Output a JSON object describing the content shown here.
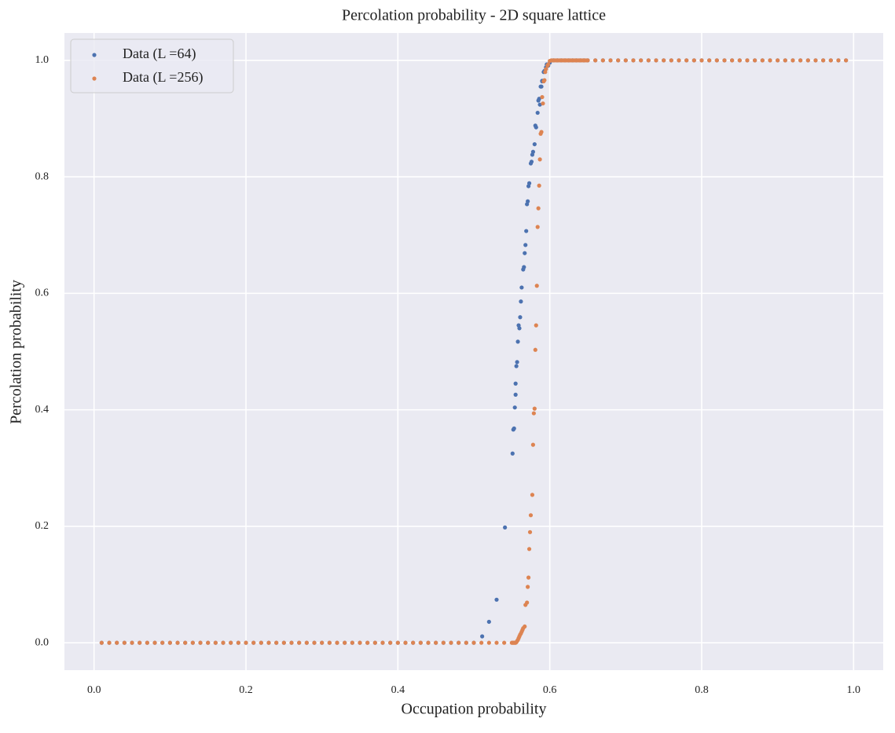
{
  "chart_data": {
    "type": "scatter",
    "title": "Percolation probability - 2D square lattice",
    "x_label": "Occupation probability",
    "y_label": "Percolation probability",
    "xlim": [
      -0.039,
      1.039
    ],
    "ylim": [
      -0.047,
      1.047
    ],
    "xticks": [
      {
        "value": 0,
        "label": "0.0"
      },
      0.2,
      0.4,
      0.6,
      0.8,
      {
        "value": 1,
        "label": "1.0"
      }
    ],
    "yticks": [
      {
        "value": 0,
        "label": "0.0"
      },
      0.2,
      0.4,
      0.6,
      0.8,
      {
        "value": 1,
        "label": "1.0"
      }
    ],
    "grid": true,
    "legend": "upper left",
    "series": [
      {
        "name": "Data (L =64)",
        "color": "#4c72b0",
        "x": [
          0.01,
          0.02,
          0.03,
          0.04,
          0.05,
          0.06,
          0.07,
          0.08,
          0.09,
          0.1,
          0.11,
          0.12,
          0.13,
          0.14,
          0.15,
          0.16,
          0.17,
          0.18,
          0.19,
          0.2,
          0.21,
          0.22,
          0.23,
          0.24,
          0.25,
          0.26,
          0.27,
          0.28,
          0.29,
          0.3,
          0.31,
          0.32,
          0.33,
          0.34,
          0.35,
          0.36,
          0.37,
          0.38,
          0.39,
          0.4,
          0.41,
          0.42,
          0.43,
          0.44,
          0.45,
          0.46,
          0.47,
          0.48,
          0.49,
          0.5,
          0.511,
          0.52,
          0.53,
          0.541,
          0.551,
          0.552,
          0.553,
          0.554,
          0.555,
          0.555,
          0.556,
          0.557,
          0.558,
          0.559,
          0.56,
          0.561,
          0.562,
          0.563,
          0.565,
          0.566,
          0.567,
          0.568,
          0.569,
          0.57,
          0.571,
          0.572,
          0.573,
          0.575,
          0.576,
          0.577,
          0.578,
          0.58,
          0.581,
          0.582,
          0.584,
          0.585,
          0.586,
          0.587,
          0.588,
          0.589,
          0.59,
          0.59,
          0.592,
          0.593,
          0.595,
          0.596,
          0.598,
          0.6,
          0.605,
          0.61,
          0.615,
          0.62,
          0.625,
          0.63,
          0.635,
          0.64,
          0.645,
          0.65,
          0.66,
          0.67,
          0.68,
          0.69,
          0.7,
          0.71,
          0.72,
          0.73,
          0.74,
          0.75,
          0.76,
          0.77,
          0.78,
          0.79,
          0.8,
          0.81,
          0.82,
          0.83,
          0.84,
          0.85,
          0.86,
          0.87,
          0.88,
          0.89,
          0.9,
          0.91,
          0.92,
          0.93,
          0.94,
          0.95,
          0.96,
          0.97,
          0.98,
          0.99
        ],
        "values": [
          0,
          0,
          0,
          0,
          0,
          0,
          0,
          0,
          0,
          0,
          0,
          0,
          0,
          0,
          0,
          0,
          0,
          0,
          0,
          0,
          0,
          0,
          0,
          0,
          0,
          0,
          0,
          0,
          0,
          0,
          0,
          0,
          0,
          0,
          0,
          0,
          0,
          0,
          0,
          0,
          0,
          0,
          0,
          0,
          0,
          0,
          0,
          0,
          0,
          0,
          0.011,
          0.036,
          0.074,
          0.198,
          0.325,
          0.366,
          0.368,
          0.404,
          0.426,
          0.445,
          0.475,
          0.482,
          0.517,
          0.545,
          0.54,
          0.559,
          0.586,
          0.61,
          0.641,
          0.645,
          0.669,
          0.683,
          0.707,
          0.753,
          0.758,
          0.784,
          0.789,
          0.823,
          0.826,
          0.838,
          0.843,
          0.856,
          0.888,
          0.885,
          0.91,
          0.931,
          0.934,
          0.924,
          0.955,
          0.955,
          0.965,
          0.964,
          0.98,
          0.982,
          0.988,
          0.993,
          0.991,
          0.996,
          1,
          1,
          1,
          1,
          1,
          1,
          1,
          1,
          1,
          1,
          1,
          1,
          1,
          1,
          1,
          1,
          1,
          1,
          1,
          1,
          1,
          1,
          1,
          1,
          1,
          1,
          1,
          1,
          1,
          1,
          1,
          1,
          1,
          1,
          1,
          1,
          1,
          1,
          1,
          1,
          1,
          1,
          1,
          1
        ]
      },
      {
        "name": "Data (L =256)",
        "color": "#dd8452",
        "x": [
          0.01,
          0.02,
          0.03,
          0.04,
          0.05,
          0.06,
          0.07,
          0.08,
          0.09,
          0.1,
          0.11,
          0.12,
          0.13,
          0.14,
          0.15,
          0.16,
          0.17,
          0.18,
          0.19,
          0.2,
          0.21,
          0.22,
          0.23,
          0.24,
          0.25,
          0.26,
          0.27,
          0.28,
          0.29,
          0.3,
          0.31,
          0.32,
          0.33,
          0.34,
          0.35,
          0.36,
          0.37,
          0.38,
          0.39,
          0.4,
          0.41,
          0.42,
          0.43,
          0.44,
          0.45,
          0.46,
          0.47,
          0.48,
          0.49,
          0.5,
          0.51,
          0.52,
          0.53,
          0.54,
          0.55,
          0.551,
          0.552,
          0.553,
          0.554,
          0.555,
          0.556,
          0.557,
          0.558,
          0.559,
          0.56,
          0.561,
          0.562,
          0.563,
          0.564,
          0.565,
          0.567,
          0.568,
          0.57,
          0.571,
          0.572,
          0.573,
          0.574,
          0.575,
          0.577,
          0.578,
          0.579,
          0.58,
          0.581,
          0.582,
          0.583,
          0.584,
          0.585,
          0.586,
          0.587,
          0.588,
          0.589,
          0.59,
          0.591,
          0.592,
          0.593,
          0.594,
          0.595,
          0.597,
          0.598,
          0.6,
          0.602,
          0.604,
          0.606,
          0.608,
          0.61,
          0.612,
          0.614,
          0.616,
          0.618,
          0.62,
          0.622,
          0.624,
          0.626,
          0.628,
          0.63,
          0.632,
          0.634,
          0.636,
          0.638,
          0.64,
          0.642,
          0.644,
          0.646,
          0.648,
          0.65,
          0.66,
          0.67,
          0.68,
          0.69,
          0.7,
          0.71,
          0.72,
          0.73,
          0.74,
          0.75,
          0.76,
          0.77,
          0.78,
          0.79,
          0.8,
          0.81,
          0.82,
          0.83,
          0.84,
          0.85,
          0.86,
          0.87,
          0.88,
          0.89,
          0.9,
          0.91,
          0.92,
          0.93,
          0.94,
          0.95,
          0.96,
          0.97,
          0.98,
          0.99
        ],
        "values": [
          0,
          0,
          0,
          0,
          0,
          0,
          0,
          0,
          0,
          0,
          0,
          0,
          0,
          0,
          0,
          0,
          0,
          0,
          0,
          0,
          0,
          0,
          0,
          0,
          0,
          0,
          0,
          0,
          0,
          0,
          0,
          0,
          0,
          0,
          0,
          0,
          0,
          0,
          0,
          0,
          0,
          0,
          0,
          0,
          0,
          0,
          0,
          0,
          0,
          0,
          0,
          0,
          0,
          0,
          0,
          0,
          0,
          0,
          0,
          0,
          0.001,
          0.003,
          0.005,
          0.008,
          0.011,
          0.014,
          0.016,
          0.019,
          0.022,
          0.025,
          0.028,
          0.065,
          0.069,
          0.096,
          0.112,
          0.161,
          0.19,
          0.219,
          0.254,
          0.34,
          0.394,
          0.402,
          0.503,
          0.545,
          0.613,
          0.714,
          0.746,
          0.785,
          0.83,
          0.874,
          0.877,
          0.937,
          0.926,
          0.964,
          0.966,
          0.98,
          0.985,
          0.991,
          0.993,
          0.999,
          1,
          1,
          1,
          1,
          1,
          1,
          1,
          1,
          1,
          1,
          1,
          1,
          1,
          1,
          1,
          1,
          1,
          1,
          1,
          1,
          1,
          1,
          1,
          1,
          1,
          1,
          1,
          1,
          1,
          1,
          1,
          1,
          1,
          1,
          1,
          1,
          1,
          1,
          1,
          1,
          1,
          1,
          1,
          1,
          1,
          1,
          1,
          1,
          1,
          1,
          1,
          1,
          1,
          1,
          1,
          1,
          1,
          1,
          1
        ]
      }
    ]
  }
}
